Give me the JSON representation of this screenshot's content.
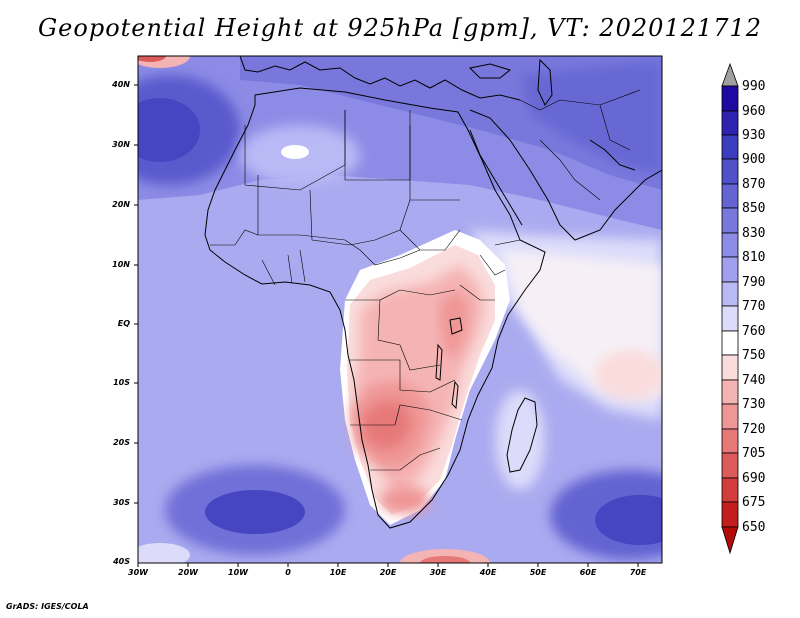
{
  "title": "Geopotential Height at 925hPa [gpm], VT: 2020121712",
  "credit": "GrADS: IGES/COLA",
  "map": {
    "lat_labels": [
      "40N",
      "30N",
      "20N",
      "10N",
      "EQ",
      "10S",
      "20S",
      "30S",
      "40S"
    ],
    "lon_labels": [
      "30W",
      "20W",
      "10W",
      "0",
      "10E",
      "20E",
      "30E",
      "40E",
      "50E",
      "60E",
      "70E"
    ]
  },
  "colorbar": {
    "levels": [
      "990",
      "960",
      "930",
      "900",
      "870",
      "850",
      "830",
      "810",
      "790",
      "770",
      "760",
      "750",
      "740",
      "730",
      "720",
      "705",
      "690",
      "675",
      "650"
    ],
    "colors": [
      "#a0a0a0",
      "#1e0aa0",
      "#2d23af",
      "#3c3cbe",
      "#5050c8",
      "#6464d2",
      "#7878dc",
      "#8c8ce6",
      "#a0a0ef",
      "#b9b9f6",
      "#dcdcfa",
      "#ffffff",
      "#fadcdc",
      "#f5b4b4",
      "#ef9696",
      "#e67878",
      "#dc5a5a",
      "#d23c3c",
      "#c31e1e",
      "#b40a0a"
    ]
  }
}
